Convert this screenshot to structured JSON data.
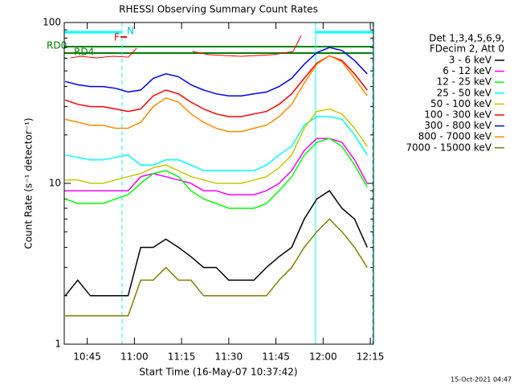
{
  "chart_data": {
    "type": "line",
    "title": "RHESSI Observing Summary Count Rates",
    "xlabel": "Start Time (16-May-07 10:37:42)",
    "ylabel": "Count Rate (s⁻¹ detector⁻¹)",
    "footer": "15-Oct-2021 04:47",
    "legend_title": [
      "Det 1,3,4,5,6,9,",
      "FDecim 2, Att 0"
    ],
    "annotations": [
      "RD0",
      "RD4",
      "N",
      "F"
    ],
    "yscale": "log",
    "legend": "outside-right",
    "xlim": [
      637.7,
      736
    ],
    "ylim": [
      1,
      100
    ],
    "yticks": [
      1,
      10,
      100
    ],
    "xticks": [
      {
        "value": 645,
        "label": "10:45"
      },
      {
        "value": 660,
        "label": "11:00"
      },
      {
        "value": 675,
        "label": "11:15"
      },
      {
        "value": 690,
        "label": "11:30"
      },
      {
        "value": 705,
        "label": "11:45"
      },
      {
        "value": 720,
        "label": "12:00"
      },
      {
        "value": 735,
        "label": "12:15"
      }
    ],
    "x": [
      638,
      642,
      646,
      650,
      654,
      658,
      662,
      666,
      670,
      674,
      678,
      682,
      686,
      690,
      694,
      698,
      702,
      706,
      710,
      714,
      718,
      722,
      726,
      730,
      734
    ],
    "series": [
      {
        "name": "3 - 6 keV",
        "color": "#000000",
        "values": [
          2,
          2.5,
          2,
          2,
          2,
          2,
          4,
          4,
          4.5,
          4,
          3.5,
          3,
          3,
          2.5,
          2.5,
          2.5,
          3,
          3.5,
          4,
          6,
          8,
          9,
          7,
          6,
          4
        ]
      },
      {
        "name": "6 - 12 keV",
        "color": "#ff00ff",
        "values": [
          9,
          9,
          9,
          9,
          9,
          9,
          11,
          11.5,
          11,
          10.5,
          10,
          9,
          9,
          8.5,
          8.5,
          8.5,
          9,
          10,
          12,
          16,
          19,
          19,
          18,
          14,
          10
        ]
      },
      {
        "name": "12 - 25 keV",
        "color": "#00ff00",
        "values": [
          8,
          7.5,
          7.5,
          7.5,
          8,
          8.5,
          10,
          11.5,
          12,
          11,
          9,
          8,
          7.5,
          7,
          7,
          7,
          7.5,
          9,
          11,
          15,
          18,
          19,
          17,
          13,
          9.5
        ]
      },
      {
        "name": "25 - 50 keV",
        "color": "#00ffff",
        "values": [
          15,
          14.5,
          14,
          14,
          14.5,
          15,
          13,
          13,
          14,
          14,
          13,
          12,
          12,
          12,
          12,
          12,
          13,
          15,
          17,
          23,
          26,
          26,
          25,
          20,
          15
        ]
      },
      {
        "name": "50 - 100 keV",
        "color": "#c8c800",
        "values": [
          10.5,
          10.5,
          10,
          10,
          10.5,
          11,
          11.5,
          12.5,
          13,
          12,
          11,
          10.5,
          10,
          10,
          10,
          10.5,
          11,
          12.5,
          15,
          22,
          28,
          29,
          27,
          22,
          17
        ]
      },
      {
        "name": "100 - 300 keV",
        "color": "#ff0000",
        "values": [
          33,
          31,
          30,
          30,
          29,
          28,
          29,
          35,
          38,
          36,
          32,
          29,
          27,
          26,
          26,
          27,
          28,
          31,
          36,
          45,
          56,
          62,
          58,
          48,
          38
        ]
      },
      {
        "name": "300 - 800 keV",
        "color": "#0000ff",
        "values": [
          43,
          41,
          40,
          40,
          39,
          37,
          38,
          45,
          48,
          46,
          41,
          38,
          36,
          35,
          35,
          36,
          37,
          40,
          45,
          55,
          65,
          70,
          67,
          58,
          48
        ]
      },
      {
        "name": "800 - 7000 keV",
        "color": "#ff8c00",
        "values": [
          25,
          24,
          23,
          23,
          22,
          22,
          24,
          30,
          34,
          32,
          27,
          24,
          22,
          21,
          21,
          22,
          23,
          26,
          31,
          42,
          55,
          62,
          57,
          45,
          35
        ]
      },
      {
        "name": "7000 - 15000 keV",
        "color": "#808000",
        "values": [
          1.5,
          1.5,
          1.5,
          1.5,
          1.5,
          1.5,
          2.5,
          2.5,
          3,
          2.5,
          2.5,
          2,
          2,
          2,
          2,
          2,
          2,
          2.5,
          3,
          4,
          5,
          6,
          5,
          4,
          3
        ]
      }
    ]
  }
}
